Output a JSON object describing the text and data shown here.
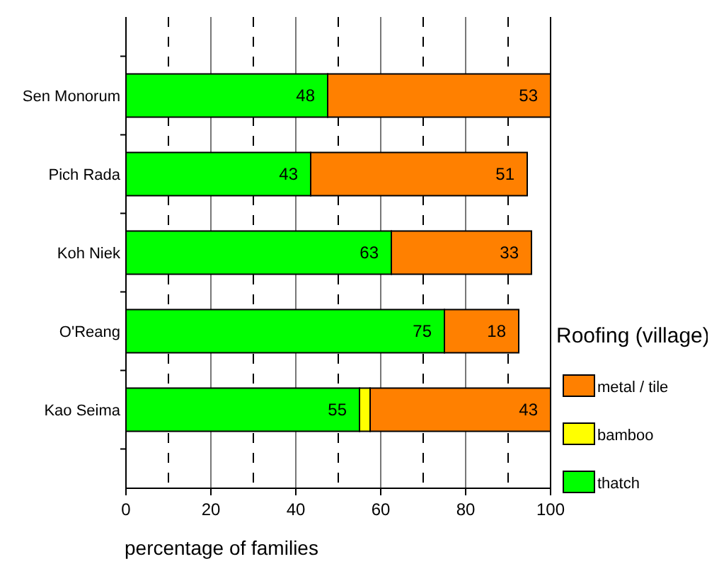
{
  "chart_data": {
    "type": "bar",
    "orientation": "horizontal",
    "stacked": true,
    "categories": [
      "Sen Monorum",
      "Pich Rada",
      "Koh Niek",
      "O'Reang",
      "Kao Seima"
    ],
    "series": [
      {
        "name": "thatch",
        "color": "#00ff00",
        "values": [
          47.5,
          43.5,
          62.5,
          75,
          55
        ],
        "value_labels": [
          "48",
          "43",
          "63",
          "75",
          "55"
        ]
      },
      {
        "name": "bamboo",
        "color": "#ffff00",
        "values": [
          null,
          null,
          null,
          null,
          2.5
        ],
        "value_labels": [
          null,
          null,
          null,
          null,
          null
        ]
      },
      {
        "name": "metal / tile",
        "color": "#ff8000",
        "values": [
          52.5,
          51,
          33,
          17.5,
          42.5
        ],
        "value_labels": [
          "53",
          "51",
          "33",
          "18",
          "43"
        ]
      }
    ],
    "xlim": [
      0,
      100
    ],
    "xticks": [
      0,
      20,
      40,
      60,
      80,
      100
    ],
    "grid": "x",
    "ref_lines": [
      {
        "axis": "x",
        "value": 10,
        "line_style": "dashed"
      },
      {
        "axis": "x",
        "value": 30,
        "line_style": "dashed"
      },
      {
        "axis": "x",
        "value": 50,
        "line_style": "dashed"
      },
      {
        "axis": "x",
        "value": 70,
        "line_style": "dashed"
      },
      {
        "axis": "x",
        "value": 90,
        "line_style": "dashed"
      }
    ],
    "xlabel": "percentage of families",
    "legend_title": "Roofing (village)",
    "legend": "right"
  }
}
